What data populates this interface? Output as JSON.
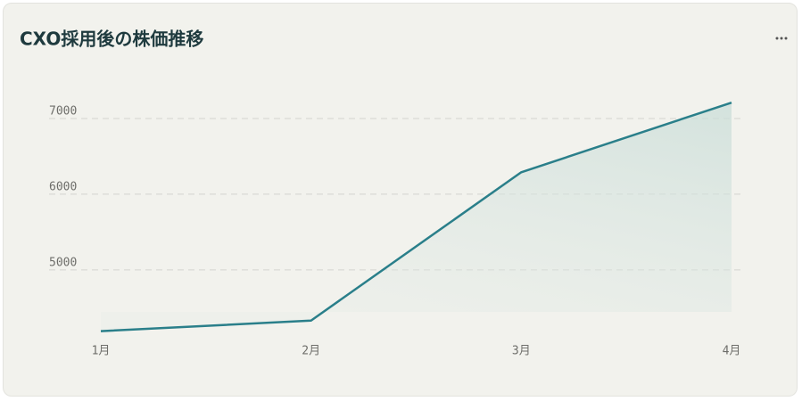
{
  "chart_data": {
    "type": "line",
    "title": "CXO採用後の株価推移",
    "categories": [
      "1月",
      "2月",
      "3月",
      "4月"
    ],
    "values": [
      4190,
      4330,
      6290,
      7210
    ],
    "color": "#2a7f8a",
    "ylim": [
      4150,
      7400
    ],
    "yticks": [
      5000,
      6000,
      7000
    ],
    "grid": true
  }
}
